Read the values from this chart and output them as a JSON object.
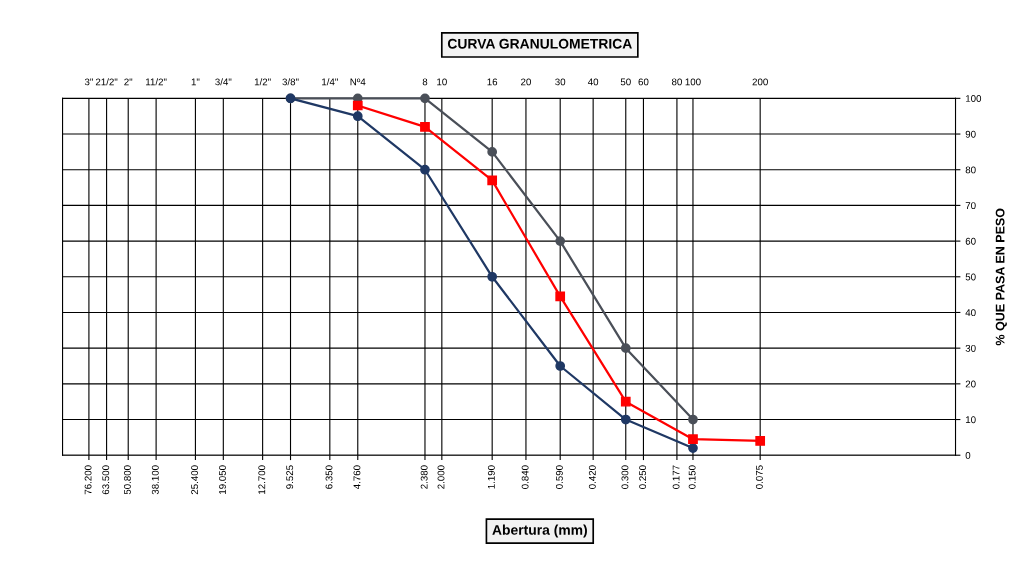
{
  "chart_data": {
    "type": "line",
    "title": "CURVA GRANULOMETRICA",
    "xlabel": "Abertura (mm)",
    "ylabel": "% QUE PASA EN PESO",
    "log": "x",
    "grid": true,
    "xlim": [
      100,
      0.01
    ],
    "ylim": [
      0,
      100
    ],
    "xticks": [
      {
        "value": 76.2,
        "label": "76.200"
      },
      {
        "value": 63.5,
        "label": "63.500"
      },
      {
        "value": 50.8,
        "label": "50.800"
      },
      {
        "value": 38.1,
        "label": "38.100"
      },
      {
        "value": 25.4,
        "label": "25.400"
      },
      {
        "value": 19.05,
        "label": "19.050"
      },
      {
        "value": 12.7,
        "label": "12.700"
      },
      {
        "value": 9.525,
        "label": "9.525"
      },
      {
        "value": 6.35,
        "label": "6.350"
      },
      {
        "value": 4.76,
        "label": "4.760"
      },
      {
        "value": 2.38,
        "label": "2.380"
      },
      {
        "value": 2.0,
        "label": "2.000"
      },
      {
        "value": 1.19,
        "label": "1.190"
      },
      {
        "value": 0.84,
        "label": "0.840"
      },
      {
        "value": 0.59,
        "label": "0.590"
      },
      {
        "value": 0.42,
        "label": "0.420"
      },
      {
        "value": 0.3,
        "label": "0.300"
      },
      {
        "value": 0.25,
        "label": "0.250"
      },
      {
        "value": 0.177,
        "label": "0.177"
      },
      {
        "value": 0.15,
        "label": "0.150"
      },
      {
        "value": 0.075,
        "label": "0.075"
      }
    ],
    "annotations": [
      "3\"",
      "21/2\"",
      "2\"",
      "11/2\"",
      "1\"",
      "3/4\"",
      "1/2\"",
      "3/8\"",
      "1/4\"",
      "Nº4",
      "8",
      "10",
      "16",
      "20",
      "30",
      "40",
      "50",
      "60",
      "80",
      "100",
      "200"
    ],
    "yticks": [
      0,
      10,
      20,
      30,
      40,
      50,
      60,
      70,
      80,
      90,
      100
    ],
    "series": [
      {
        "color": "#4a4f58",
        "marker": "circle",
        "x": [
          9.525,
          4.76,
          2.38,
          1.19,
          0.59,
          0.3,
          0.15
        ],
        "values": [
          100,
          100,
          100,
          85,
          60,
          30,
          10
        ]
      },
      {
        "color": "#1f3864",
        "marker": "circle",
        "x": [
          9.525,
          4.76,
          2.38,
          1.19,
          0.59,
          0.3,
          0.15
        ],
        "values": [
          100,
          95,
          80,
          50,
          25,
          10,
          2
        ]
      },
      {
        "color": "#ff0000",
        "marker": "square",
        "x": [
          4.76,
          2.38,
          1.19,
          0.59,
          0.3,
          0.15,
          0.075
        ],
        "values": [
          98,
          92,
          77,
          44.5,
          15,
          4.5,
          4
        ]
      }
    ]
  }
}
